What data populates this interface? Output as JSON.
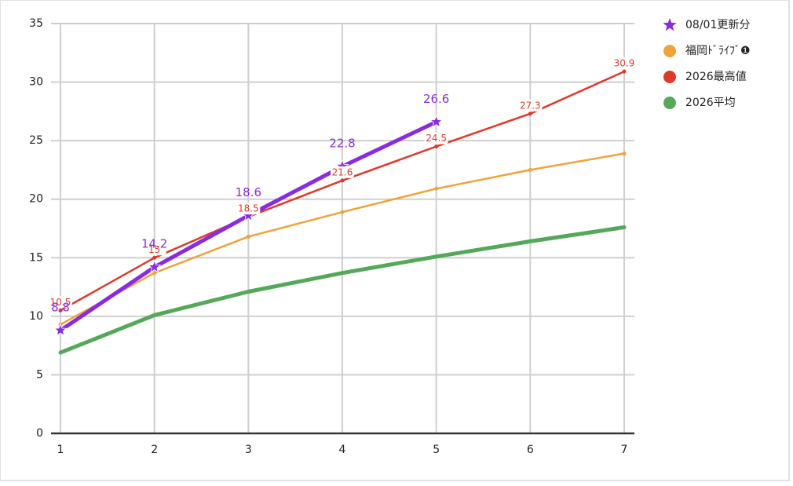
{
  "chart_data": {
    "type": "line",
    "x": [
      1,
      2,
      3,
      4,
      5,
      6,
      7
    ],
    "xlim": [
      1,
      7
    ],
    "xticks": [
      1,
      2,
      3,
      4,
      5,
      6,
      7
    ],
    "ylim": [
      0,
      35
    ],
    "yticks": [
      0,
      5,
      10,
      15,
      20,
      25,
      30,
      35
    ],
    "grid": true,
    "legend": "right",
    "series": [
      {
        "name": "08/01更新分",
        "color": "#8a2be2",
        "marker": "star",
        "labels": true,
        "values": [
          8.8,
          14.2,
          18.6,
          22.8,
          26.6,
          null,
          null
        ]
      },
      {
        "name": "福岡ﾄﾞﾗｲﾌﾞ❶",
        "color": "#f2a23a",
        "marker": "circle",
        "labels": false,
        "values": [
          9.3,
          13.7,
          16.8,
          18.9,
          20.9,
          22.5,
          23.9
        ]
      },
      {
        "name": "2026最高値",
        "color": "#e0392b",
        "marker": "circle",
        "labels": true,
        "values": [
          10.5,
          15,
          18.5,
          21.6,
          24.5,
          27.3,
          30.9
        ]
      },
      {
        "name": "2026平均",
        "color": "#55a85a",
        "marker": "circle",
        "labels": false,
        "values": [
          6.9,
          10.1,
          12.1,
          13.7,
          15.1,
          16.4,
          17.6
        ]
      }
    ]
  }
}
